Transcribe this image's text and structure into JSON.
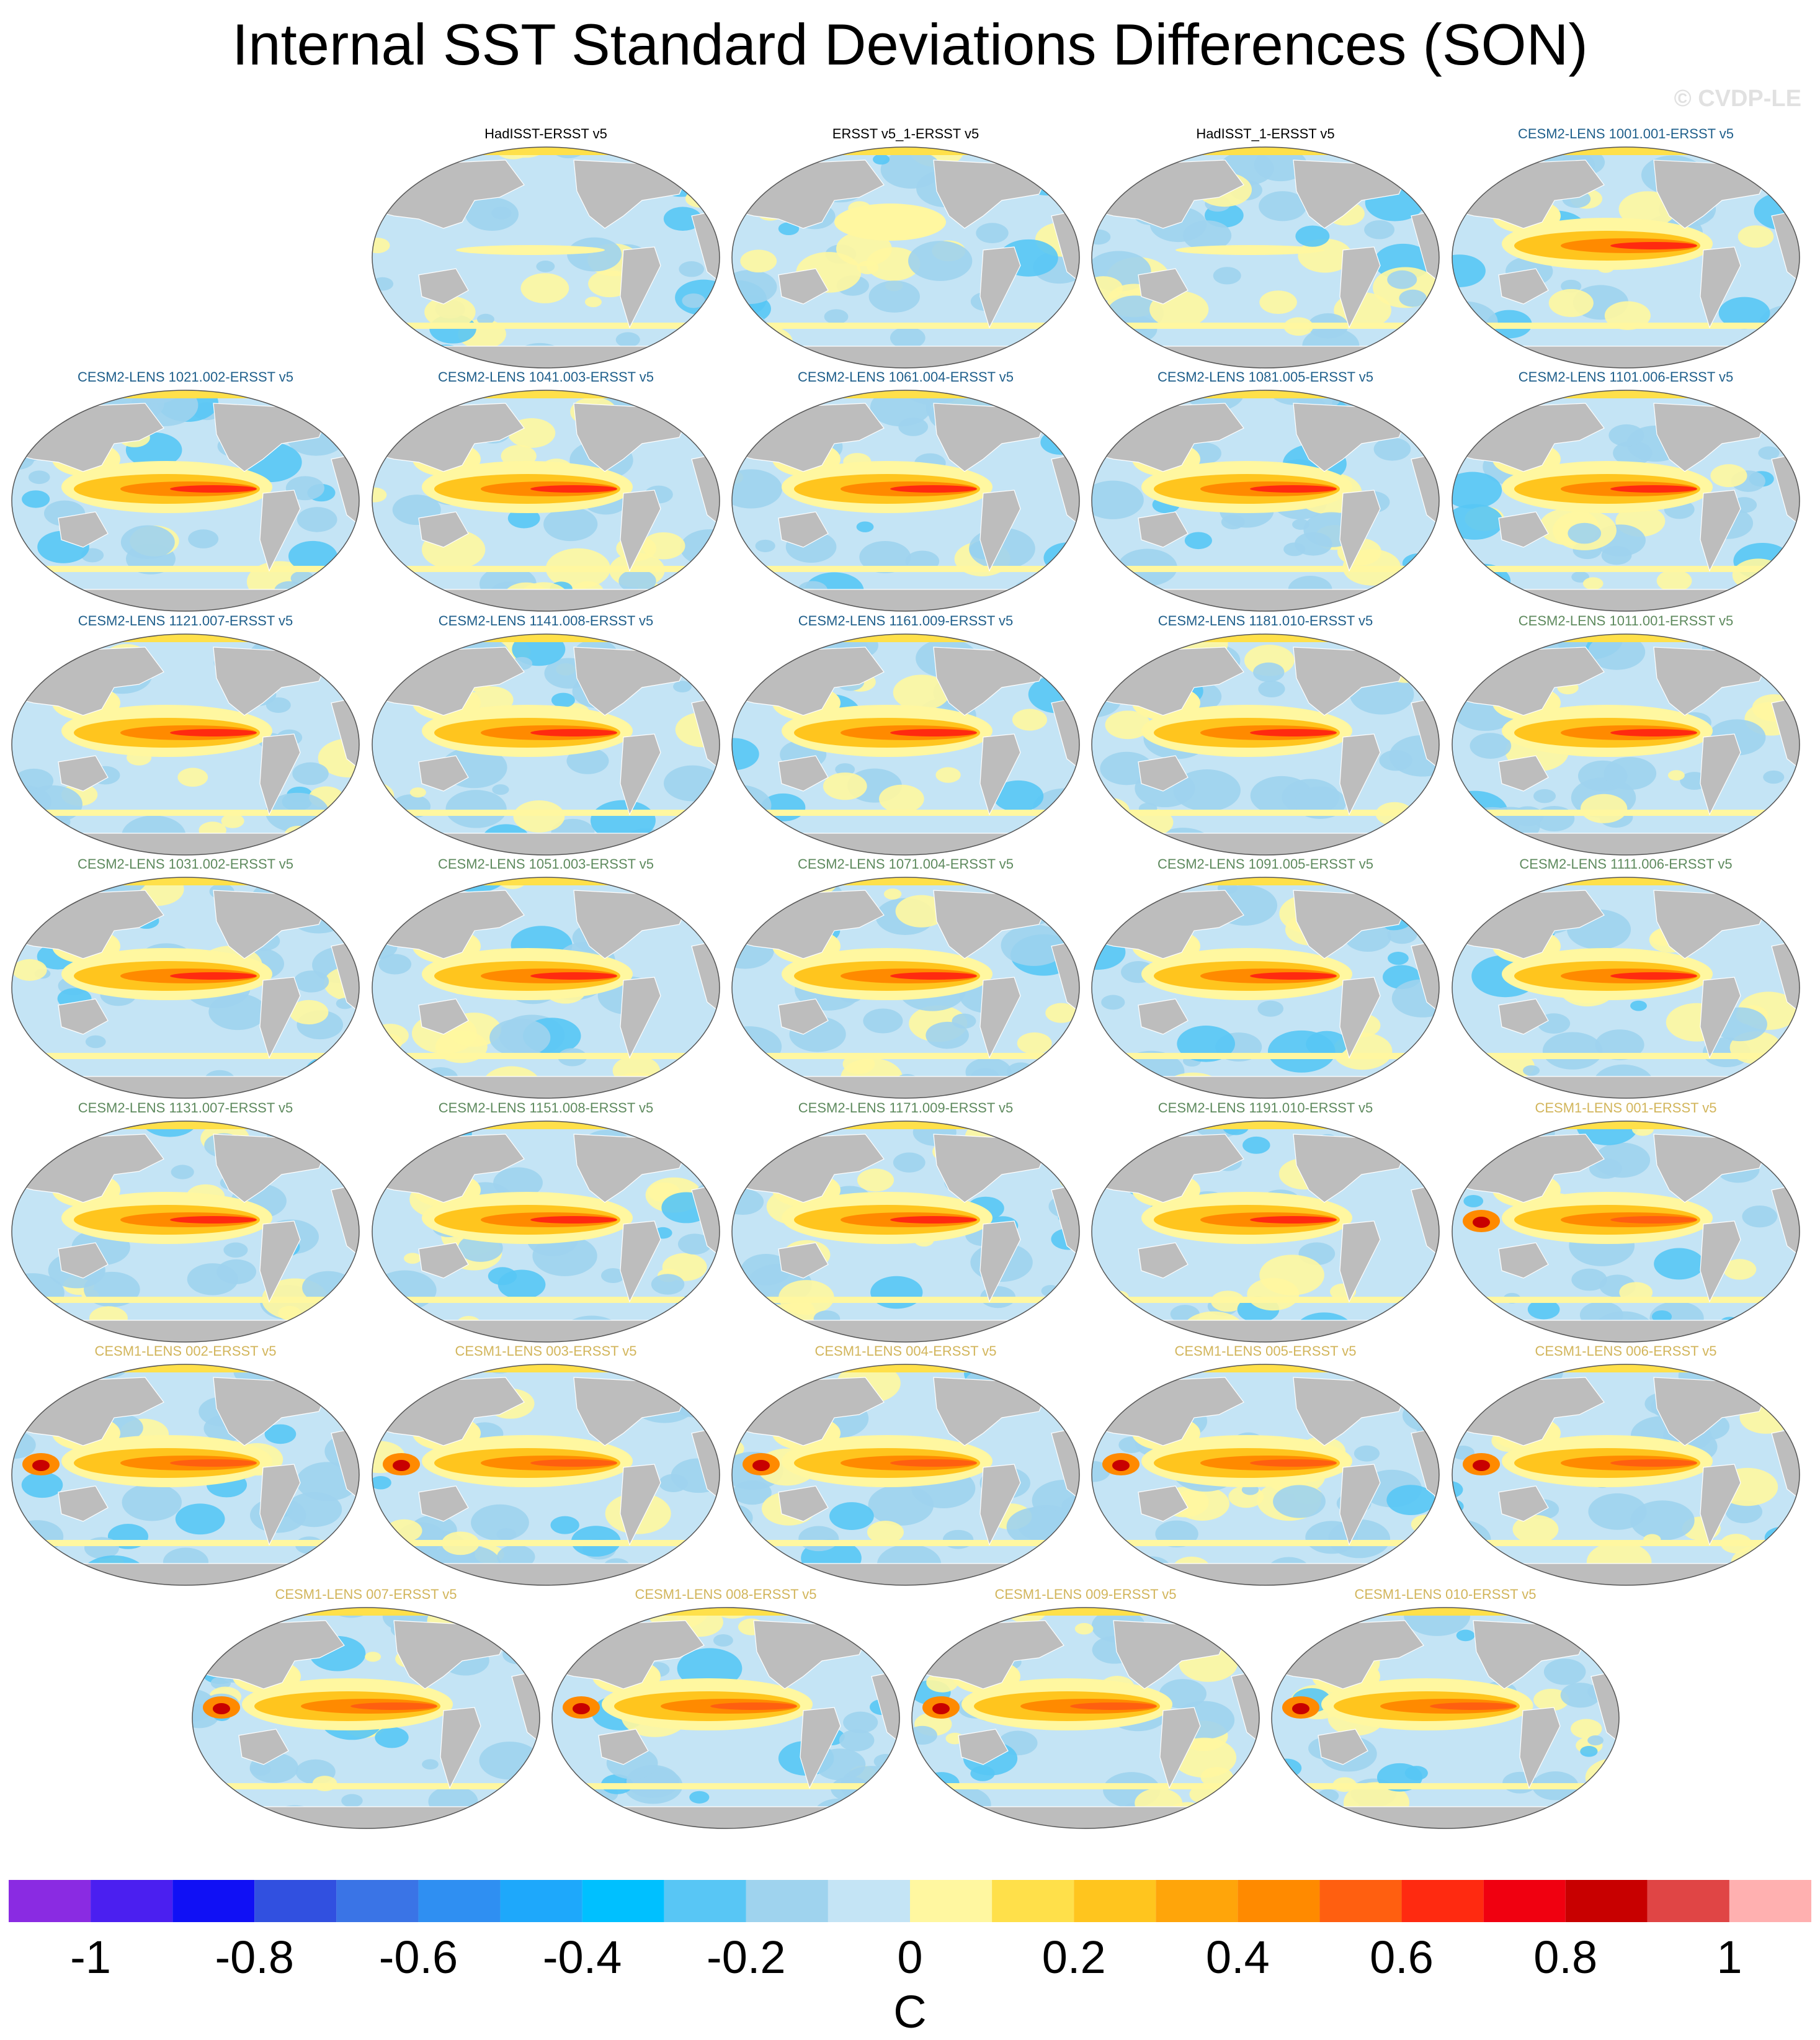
{
  "title": "Internal SST Standard Deviations Differences (SON)",
  "watermark": "© CVDP-LE",
  "panels": [
    {
      "label": "HadISST-ERSST v5",
      "color": "#000000",
      "style": "obs"
    },
    {
      "label": "ERSST v5_1-ERSST v5",
      "color": "#000000",
      "style": "obs2"
    },
    {
      "label": "HadISST_1-ERSST v5",
      "color": "#000000",
      "style": "obs"
    },
    {
      "label": "CESM2-LENS 1001.001-ERSST v5",
      "color": "#1f5f8b",
      "style": "cesm2"
    },
    {
      "label": "CESM2-LENS 1021.002-ERSST v5",
      "color": "#1f5f8b",
      "style": "cesm2"
    },
    {
      "label": "CESM2-LENS 1041.003-ERSST v5",
      "color": "#1f5f8b",
      "style": "cesm2"
    },
    {
      "label": "CESM2-LENS 1061.004-ERSST v5",
      "color": "#1f5f8b",
      "style": "cesm2"
    },
    {
      "label": "CESM2-LENS 1081.005-ERSST v5",
      "color": "#1f5f8b",
      "style": "cesm2"
    },
    {
      "label": "CESM2-LENS 1101.006-ERSST v5",
      "color": "#1f5f8b",
      "style": "cesm2"
    },
    {
      "label": "CESM2-LENS 1121.007-ERSST v5",
      "color": "#1f5f8b",
      "style": "cesm2"
    },
    {
      "label": "CESM2-LENS 1141.008-ERSST v5",
      "color": "#1f5f8b",
      "style": "cesm2"
    },
    {
      "label": "CESM2-LENS 1161.009-ERSST v5",
      "color": "#1f5f8b",
      "style": "cesm2"
    },
    {
      "label": "CESM2-LENS 1181.010-ERSST v5",
      "color": "#1f5f8b",
      "style": "cesm2"
    },
    {
      "label": "CESM2-LENS 1011.001-ERSST v5",
      "color": "#5e8a5e",
      "style": "cesm2"
    },
    {
      "label": "CESM2-LENS 1031.002-ERSST v5",
      "color": "#5e8a5e",
      "style": "cesm2"
    },
    {
      "label": "CESM2-LENS 1051.003-ERSST v5",
      "color": "#5e8a5e",
      "style": "cesm2"
    },
    {
      "label": "CESM2-LENS 1071.004-ERSST v5",
      "color": "#5e8a5e",
      "style": "cesm2"
    },
    {
      "label": "CESM2-LENS 1091.005-ERSST v5",
      "color": "#5e8a5e",
      "style": "cesm2"
    },
    {
      "label": "CESM2-LENS 1111.006-ERSST v5",
      "color": "#5e8a5e",
      "style": "cesm2"
    },
    {
      "label": "CESM2-LENS 1131.007-ERSST v5",
      "color": "#5e8a5e",
      "style": "cesm2"
    },
    {
      "label": "CESM2-LENS 1151.008-ERSST v5",
      "color": "#5e8a5e",
      "style": "cesm2"
    },
    {
      "label": "CESM2-LENS 1171.009-ERSST v5",
      "color": "#5e8a5e",
      "style": "cesm2"
    },
    {
      "label": "CESM2-LENS 1191.010-ERSST v5",
      "color": "#5e8a5e",
      "style": "cesm2"
    },
    {
      "label": "CESM1-LENS 001-ERSST v5",
      "color": "#d2b55b",
      "style": "cesm1"
    },
    {
      "label": "CESM1-LENS 002-ERSST v5",
      "color": "#d2b55b",
      "style": "cesm1"
    },
    {
      "label": "CESM1-LENS 003-ERSST v5",
      "color": "#d2b55b",
      "style": "cesm1"
    },
    {
      "label": "CESM1-LENS 004-ERSST v5",
      "color": "#d2b55b",
      "style": "cesm1"
    },
    {
      "label": "CESM1-LENS 005-ERSST v5",
      "color": "#d2b55b",
      "style": "cesm1"
    },
    {
      "label": "CESM1-LENS 006-ERSST v5",
      "color": "#d2b55b",
      "style": "cesm1"
    },
    {
      "label": "CESM1-LENS 007-ERSST v5",
      "color": "#d2b55b",
      "style": "cesm1"
    },
    {
      "label": "CESM1-LENS 008-ERSST v5",
      "color": "#d2b55b",
      "style": "cesm1"
    },
    {
      "label": "CESM1-LENS 009-ERSST v5",
      "color": "#d2b55b",
      "style": "cesm1"
    },
    {
      "label": "CESM1-LENS 010-ERSST v5",
      "color": "#d2b55b",
      "style": "cesm1"
    }
  ],
  "colorbar": {
    "colors": [
      "#8a2be2",
      "#4b1ff0",
      "#1010f5",
      "#3150e0",
      "#3a74e6",
      "#2f8ff2",
      "#1ea8fb",
      "#00c0ff",
      "#58c6f5",
      "#9fd3ee",
      "#c4e4f5",
      "#fff7a0",
      "#ffe04a",
      "#ffc51e",
      "#ffa50a",
      "#ff8a00",
      "#ff5f10",
      "#ff2a10",
      "#f00010",
      "#c80000",
      "#e04545",
      "#ffb0b0"
    ],
    "ticks": [
      "-1",
      "-0.8",
      "-0.6",
      "-0.4",
      "-0.2",
      "0",
      "0.2",
      "0.4",
      "0.6",
      "0.8",
      "1"
    ],
    "units": "C"
  }
}
